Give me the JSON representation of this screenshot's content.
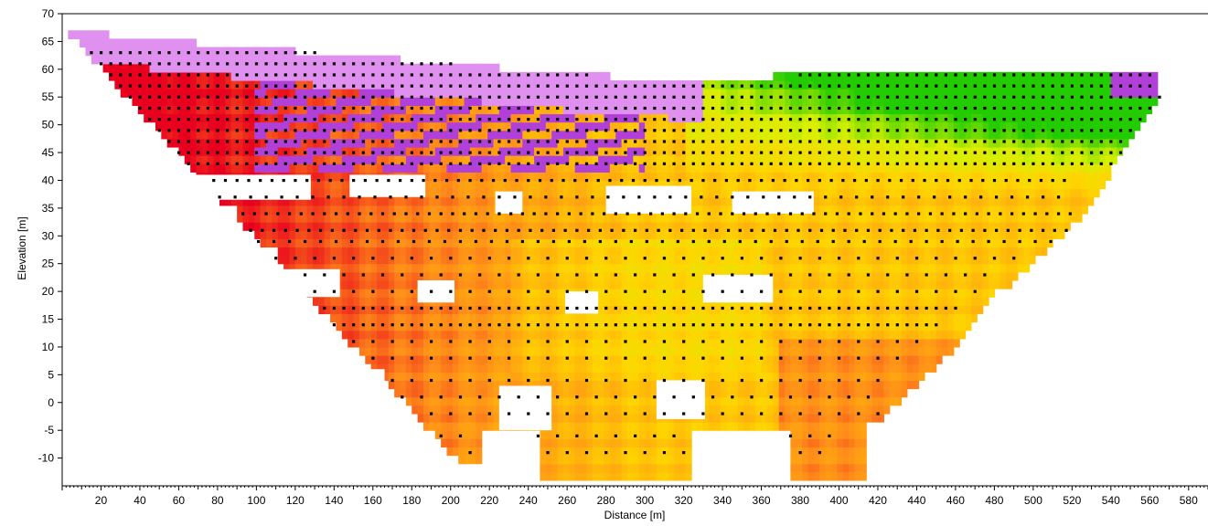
{
  "chart_data": {
    "type": "heatmap",
    "title": "",
    "xlabel": "Distance [m]",
    "ylabel": "Elevation [m]",
    "xlim": [
      0,
      590
    ],
    "ylim": [
      -15,
      70
    ],
    "grid": false,
    "legend": "none",
    "x_ticks": [
      20,
      40,
      60,
      80,
      100,
      120,
      140,
      160,
      180,
      200,
      220,
      240,
      260,
      280,
      300,
      320,
      340,
      360,
      380,
      400,
      420,
      440,
      460,
      480,
      500,
      520,
      540,
      560,
      580
    ],
    "y_ticks": [
      70,
      65,
      60,
      55,
      50,
      45,
      40,
      35,
      30,
      25,
      20,
      15,
      10,
      5,
      0,
      -5,
      -10
    ],
    "color_scale": {
      "low": "#e8001e",
      "mid_low": "#ff8c1a",
      "mid": "#ffd400",
      "mid_high": "#d8f000",
      "high": "#22cc00",
      "conductive": "#b040d8",
      "very_conductive": "#e090ee"
    },
    "regions": [
      {
        "name": "upper-left-conductive",
        "x": [
          2,
          330
        ],
        "y": [
          50,
          67
        ],
        "value": "very_conductive"
      },
      {
        "name": "mid-left-conductive",
        "x": [
          100,
          300
        ],
        "y": [
          40,
          55
        ],
        "value": "conductive"
      },
      {
        "name": "left-resistive",
        "x": [
          40,
          280
        ],
        "y": [
          10,
          45
        ],
        "value": "low"
      },
      {
        "name": "right-green",
        "x": [
          330,
          570
        ],
        "y": [
          40,
          56
        ],
        "value": "high"
      },
      {
        "name": "central-yellow",
        "x": [
          230,
          540
        ],
        "y": [
          -5,
          40
        ],
        "value": "mid"
      },
      {
        "name": "right-orange",
        "x": [
          380,
          470
        ],
        "y": [
          -13,
          10
        ],
        "value": "mid_low"
      }
    ],
    "surface_profile": [
      [
        2,
        67
      ],
      [
        60,
        65
      ],
      [
        130,
        63
      ],
      [
        200,
        61
      ],
      [
        270,
        59
      ],
      [
        320,
        58
      ],
      [
        380,
        59
      ],
      [
        460,
        59.5
      ],
      [
        530,
        60
      ],
      [
        590,
        60
      ]
    ],
    "blank_gaps": [
      [
        68,
        128,
        36.5,
        41
      ],
      [
        148,
        187,
        37,
        41
      ],
      [
        223,
        237,
        34,
        38
      ],
      [
        280,
        324,
        34,
        39
      ],
      [
        345,
        387,
        34,
        38
      ],
      [
        108,
        143,
        19,
        24
      ],
      [
        183,
        202,
        18,
        22
      ],
      [
        259,
        276,
        16,
        20
      ],
      [
        330,
        366,
        18,
        23
      ],
      [
        140,
        166,
        -2,
        6
      ],
      [
        225,
        252,
        -5,
        3
      ],
      [
        306,
        331,
        -3,
        4
      ]
    ],
    "measurement_rows": [
      {
        "y": 63,
        "x_start": 10,
        "x_end": 560,
        "step": 5
      },
      {
        "y": 61,
        "x_start": 15,
        "x_end": 560,
        "step": 5
      },
      {
        "y": 59,
        "x_start": 15,
        "x_end": 560,
        "step": 5
      },
      {
        "y": 57,
        "x_start": 20,
        "x_end": 560,
        "step": 5
      },
      {
        "y": 55,
        "x_start": 25,
        "x_end": 565,
        "step": 5
      },
      {
        "y": 53,
        "x_start": 30,
        "x_end": 565,
        "step": 5
      },
      {
        "y": 51,
        "x_start": 35,
        "x_end": 565,
        "step": 5
      },
      {
        "y": 49,
        "x_start": 40,
        "x_end": 565,
        "step": 5
      },
      {
        "y": 47,
        "x_start": 45,
        "x_end": 550,
        "step": 5
      },
      {
        "y": 45,
        "x_start": 50,
        "x_end": 545,
        "step": 5
      },
      {
        "y": 43,
        "x_start": 55,
        "x_end": 540,
        "step": 5
      },
      {
        "y": 40,
        "x_start": 60,
        "x_end": 520,
        "step": 6
      },
      {
        "y": 37,
        "x_start": 65,
        "x_end": 520,
        "step": 8
      },
      {
        "y": 34,
        "x_start": 75,
        "x_end": 520,
        "step": 6
      },
      {
        "y": 31,
        "x_start": 85,
        "x_end": 520,
        "step": 6
      },
      {
        "y": 29,
        "x_start": 85,
        "x_end": 520,
        "step": 8
      },
      {
        "y": 26,
        "x_start": 90,
        "x_end": 490,
        "step": 10
      },
      {
        "y": 23,
        "x_start": 95,
        "x_end": 480,
        "step": 10
      },
      {
        "y": 20,
        "x_start": 100,
        "x_end": 470,
        "step": 10
      },
      {
        "y": 17,
        "x_start": 110,
        "x_end": 460,
        "step": 5
      },
      {
        "y": 14,
        "x_start": 120,
        "x_end": 450,
        "step": 5
      },
      {
        "y": 11,
        "x_start": 130,
        "x_end": 440,
        "step": 10
      },
      {
        "y": 8,
        "x_start": 140,
        "x_end": 430,
        "step": 10
      },
      {
        "y": 4,
        "x_start": 150,
        "x_end": 420,
        "step": 10
      },
      {
        "y": 1,
        "x_start": 155,
        "x_end": 420,
        "step": 10
      },
      {
        "y": -2,
        "x_start": 170,
        "x_end": 420,
        "step": 10
      },
      {
        "y": -6,
        "x_start": 195,
        "x_end": 400,
        "step": 10
      },
      {
        "y": -9,
        "x_start": 210,
        "x_end": 390,
        "step": 10
      }
    ]
  }
}
